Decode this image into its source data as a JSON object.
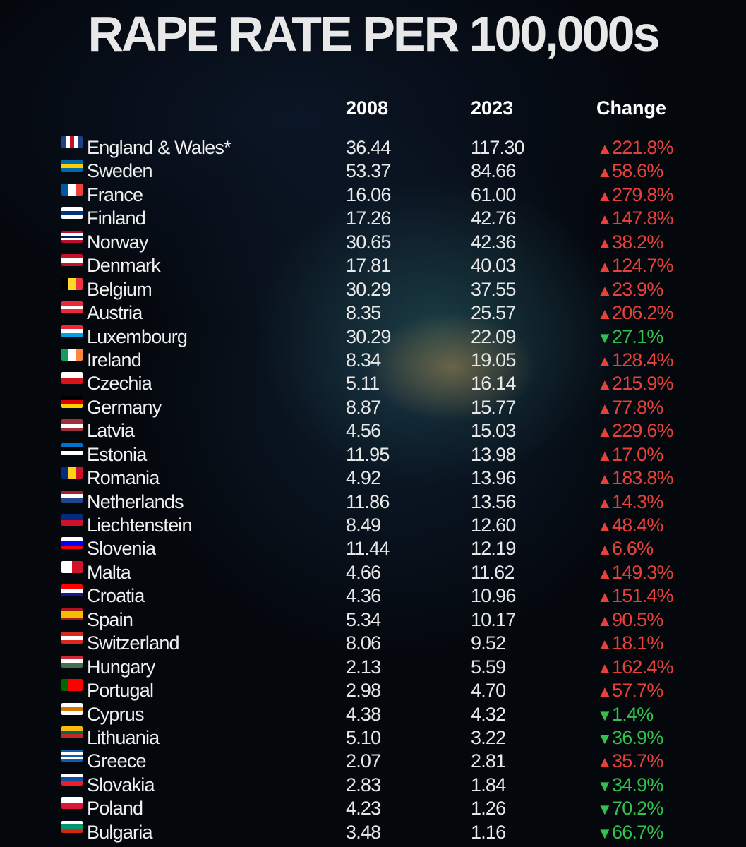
{
  "title": "RAPE RATE PER 100,000s",
  "columns": {
    "y2008": "2008",
    "y2023": "2023",
    "change": "Change"
  },
  "up_arrow": "▲",
  "down_arrow": "▼",
  "colors": {
    "increase": "#e8413a",
    "decrease": "#31c24c",
    "background": "#04070c"
  },
  "rows": [
    {
      "country": "England & Wales*",
      "y2008": "36.44",
      "y2023": "117.30",
      "change": "221.8%",
      "dir": "up",
      "flag": {
        "o": "v",
        "c": [
          "#1f3f8c",
          "#ffffff",
          "#c8102e",
          "#ffffff",
          "#1f3f8c"
        ]
      }
    },
    {
      "country": "Sweden",
      "y2008": "53.37",
      "y2023": "84.66",
      "change": "58.6%",
      "dir": "up",
      "flag": {
        "o": "h",
        "c": [
          "#006aa7",
          "#fecc00",
          "#006aa7"
        ]
      }
    },
    {
      "country": "France",
      "y2008": "16.06",
      "y2023": "61.00",
      "change": "279.8%",
      "dir": "up",
      "flag": {
        "o": "v",
        "c": [
          "#0055a4",
          "#ffffff",
          "#ef4135"
        ]
      }
    },
    {
      "country": "Finland",
      "y2008": "17.26",
      "y2023": "42.76",
      "change": "147.8%",
      "dir": "up",
      "flag": {
        "o": "h",
        "c": [
          "#ffffff",
          "#003580",
          "#ffffff"
        ]
      }
    },
    {
      "country": "Norway",
      "y2008": "30.65",
      "y2023": "42.36",
      "change": "38.2%",
      "dir": "up",
      "flag": {
        "o": "h",
        "c": [
          "#ba0c2f",
          "#ffffff",
          "#00205b",
          "#ffffff",
          "#ba0c2f"
        ]
      }
    },
    {
      "country": "Denmark",
      "y2008": "17.81",
      "y2023": "40.03",
      "change": "124.7%",
      "dir": "up",
      "flag": {
        "o": "h",
        "c": [
          "#c8102e",
          "#ffffff",
          "#c8102e"
        ]
      }
    },
    {
      "country": "Belgium",
      "y2008": "30.29",
      "y2023": "37.55",
      "change": "23.9%",
      "dir": "up",
      "flag": {
        "o": "v",
        "c": [
          "#000000",
          "#fdda24",
          "#ef3340"
        ]
      }
    },
    {
      "country": "Austria",
      "y2008": "8.35",
      "y2023": "25.57",
      "change": "206.2%",
      "dir": "up",
      "flag": {
        "o": "h",
        "c": [
          "#ed2939",
          "#ffffff",
          "#ed2939"
        ]
      }
    },
    {
      "country": "Luxembourg",
      "y2008": "30.29",
      "y2023": "22.09",
      "change": "27.1%",
      "dir": "down",
      "flag": {
        "o": "h",
        "c": [
          "#ed2939",
          "#ffffff",
          "#00a1de"
        ]
      }
    },
    {
      "country": "Ireland",
      "y2008": "8.34",
      "y2023": "19.05",
      "change": "128.4%",
      "dir": "up",
      "flag": {
        "o": "v",
        "c": [
          "#169b62",
          "#ffffff",
          "#ff883e"
        ]
      }
    },
    {
      "country": "Czechia",
      "y2008": "5.11",
      "y2023": "16.14",
      "change": "215.9%",
      "dir": "up",
      "flag": {
        "o": "h",
        "c": [
          "#ffffff",
          "#d7141a"
        ]
      }
    },
    {
      "country": "Germany",
      "y2008": "8.87",
      "y2023": "15.77",
      "change": "77.8%",
      "dir": "up",
      "flag": {
        "o": "h",
        "c": [
          "#000000",
          "#dd0000",
          "#ffce00"
        ]
      }
    },
    {
      "country": "Latvia",
      "y2008": "4.56",
      "y2023": "15.03",
      "change": "229.6%",
      "dir": "up",
      "flag": {
        "o": "h",
        "c": [
          "#9e3039",
          "#ffffff",
          "#9e3039"
        ]
      }
    },
    {
      "country": "Estonia",
      "y2008": "11.95",
      "y2023": "13.98",
      "change": "17.0%",
      "dir": "up",
      "flag": {
        "o": "h",
        "c": [
          "#0072ce",
          "#000000",
          "#ffffff"
        ]
      }
    },
    {
      "country": "Romania",
      "y2008": "4.92",
      "y2023": "13.96",
      "change": "183.8%",
      "dir": "up",
      "flag": {
        "o": "v",
        "c": [
          "#002b7f",
          "#fcd116",
          "#ce1126"
        ]
      }
    },
    {
      "country": "Netherlands",
      "y2008": "11.86",
      "y2023": "13.56",
      "change": "14.3%",
      "dir": "up",
      "flag": {
        "o": "h",
        "c": [
          "#ae1c28",
          "#ffffff",
          "#21468b"
        ]
      }
    },
    {
      "country": "Liechtenstein",
      "y2008": "8.49",
      "y2023": "12.60",
      "change": "48.4%",
      "dir": "up",
      "flag": {
        "o": "h",
        "c": [
          "#002b7f",
          "#ce1126"
        ]
      }
    },
    {
      "country": "Slovenia",
      "y2008": "11.44",
      "y2023": "12.19",
      "change": "6.6%",
      "dir": "up",
      "flag": {
        "o": "h",
        "c": [
          "#ffffff",
          "#0000ff",
          "#ff0000"
        ]
      }
    },
    {
      "country": "Malta",
      "y2008": "4.66",
      "y2023": "11.62",
      "change": "149.3%",
      "dir": "up",
      "flag": {
        "o": "v",
        "c": [
          "#ffffff",
          "#cf142b"
        ]
      }
    },
    {
      "country": "Croatia",
      "y2008": "4.36",
      "y2023": "10.96",
      "change": "151.4%",
      "dir": "up",
      "flag": {
        "o": "h",
        "c": [
          "#ff0000",
          "#ffffff",
          "#171796"
        ]
      }
    },
    {
      "country": "Spain",
      "y2008": "5.34",
      "y2023": "10.17",
      "change": "90.5%",
      "dir": "up",
      "flag": {
        "o": "h",
        "c": [
          "#aa151b",
          "#f1bf00",
          "#f1bf00",
          "#aa151b"
        ]
      }
    },
    {
      "country": "Switzerland",
      "y2008": "8.06",
      "y2023": "9.52",
      "change": "18.1%",
      "dir": "up",
      "flag": {
        "o": "h",
        "c": [
          "#da291c",
          "#ffffff",
          "#da291c"
        ]
      }
    },
    {
      "country": "Hungary",
      "y2008": "2.13",
      "y2023": "5.59",
      "change": "162.4%",
      "dir": "up",
      "flag": {
        "o": "h",
        "c": [
          "#ce2939",
          "#ffffff",
          "#477050"
        ]
      }
    },
    {
      "country": "Portugal",
      "y2008": "2.98",
      "y2023": "4.70",
      "change": "57.7%",
      "dir": "up",
      "flag": {
        "o": "v",
        "c": [
          "#006600",
          "#ff0000",
          "#ff0000"
        ]
      }
    },
    {
      "country": "Cyprus",
      "y2008": "4.38",
      "y2023": "4.32",
      "change": "1.4%",
      "dir": "down",
      "flag": {
        "o": "h",
        "c": [
          "#ffffff",
          "#d57800",
          "#ffffff"
        ]
      }
    },
    {
      "country": "Lithuania",
      "y2008": "5.10",
      "y2023": "3.22",
      "change": "36.9%",
      "dir": "down",
      "flag": {
        "o": "h",
        "c": [
          "#fdb913",
          "#006a44",
          "#c1272d"
        ]
      }
    },
    {
      "country": "Greece",
      "y2008": "2.07",
      "y2023": "2.81",
      "change": "35.7%",
      "dir": "up",
      "flag": {
        "o": "h",
        "c": [
          "#0d5eaf",
          "#ffffff",
          "#0d5eaf",
          "#ffffff",
          "#0d5eaf"
        ]
      }
    },
    {
      "country": "Slovakia",
      "y2008": "2.83",
      "y2023": "1.84",
      "change": "34.9%",
      "dir": "down",
      "flag": {
        "o": "h",
        "c": [
          "#ffffff",
          "#0b4ea2",
          "#ee1c25"
        ]
      }
    },
    {
      "country": "Poland",
      "y2008": "4.23",
      "y2023": "1.26",
      "change": "70.2%",
      "dir": "down",
      "flag": {
        "o": "h",
        "c": [
          "#ffffff",
          "#dc143c"
        ]
      }
    },
    {
      "country": "Bulgaria",
      "y2008": "3.48",
      "y2023": "1.16",
      "change": "66.7%",
      "dir": "down",
      "flag": {
        "o": "h",
        "c": [
          "#ffffff",
          "#00966e",
          "#d62612"
        ]
      }
    }
  ],
  "chart_data": {
    "type": "table",
    "title": "RAPE RATE PER 100,000s",
    "columns": [
      "",
      "2008",
      "2023",
      "Change"
    ],
    "rows": [
      [
        "England & Wales*",
        36.44,
        117.3,
        "221.8%"
      ],
      [
        "Sweden",
        53.37,
        84.66,
        "58.6%"
      ],
      [
        "France",
        16.06,
        61.0,
        "279.8%"
      ],
      [
        "Finland",
        17.26,
        42.76,
        "147.8%"
      ],
      [
        "Norway",
        30.65,
        42.36,
        "38.2%"
      ],
      [
        "Denmark",
        17.81,
        40.03,
        "124.7%"
      ],
      [
        "Belgium",
        30.29,
        37.55,
        "23.9%"
      ],
      [
        "Austria",
        8.35,
        25.57,
        "206.2%"
      ],
      [
        "Luxembourg",
        30.29,
        22.09,
        "27.1%"
      ],
      [
        "Ireland",
        8.34,
        19.05,
        "128.4%"
      ],
      [
        "Czechia",
        5.11,
        16.14,
        "215.9%"
      ],
      [
        "Germany",
        8.87,
        15.77,
        "77.8%"
      ],
      [
        "Latvia",
        4.56,
        15.03,
        "229.6%"
      ],
      [
        "Estonia",
        11.95,
        13.98,
        "17.0%"
      ],
      [
        "Romania",
        4.92,
        13.96,
        "183.8%"
      ],
      [
        "Netherlands",
        11.86,
        13.56,
        "14.3%"
      ],
      [
        "Liechtenstein",
        8.49,
        12.6,
        "48.4%"
      ],
      [
        "Slovenia",
        11.44,
        12.19,
        "6.6%"
      ],
      [
        "Malta",
        4.66,
        11.62,
        "149.3%"
      ],
      [
        "Croatia",
        4.36,
        10.96,
        "151.4%"
      ],
      [
        "Spain",
        5.34,
        10.17,
        "90.5%"
      ],
      [
        "Switzerland",
        8.06,
        9.52,
        "18.1%"
      ],
      [
        "Hungary",
        2.13,
        5.59,
        "162.4%"
      ],
      [
        "Portugal",
        2.98,
        4.7,
        "57.7%"
      ],
      [
        "Cyprus",
        4.38,
        4.32,
        "1.4%"
      ],
      [
        "Lithuania",
        5.1,
        3.22,
        "36.9%"
      ],
      [
        "Greece",
        2.07,
        2.81,
        "35.7%"
      ],
      [
        "Slovakia",
        2.83,
        1.84,
        "34.9%"
      ],
      [
        "Poland",
        4.23,
        1.26,
        "70.2%"
      ],
      [
        "Bulgaria",
        3.48,
        1.16,
        "66.7%"
      ]
    ]
  }
}
